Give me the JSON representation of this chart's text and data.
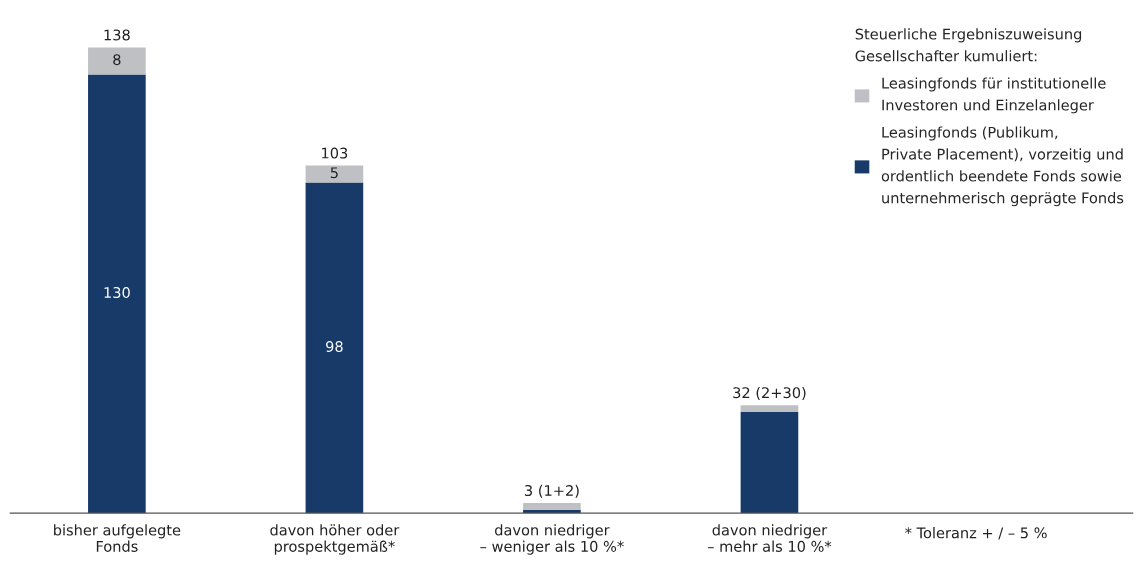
{
  "chart_data": {
    "type": "bar",
    "stacked": true,
    "legend": "top right",
    "grid": false,
    "tick_labels": "x",
    "legend_title": "Steuerliche Ergebniszuweisung\nGesellschafter kumuliert:",
    "categories": [
      "bisher aufgelegte\nFonds",
      "davon höher oder\nprospektgemäß*",
      "davon niedriger\n– weniger als 10 %*",
      "davon niedriger\n– mehr als 10 %*"
    ],
    "series": [
      {
        "name": "Leasingfonds (Publikum,\nPrivate Placement), vorzeitig und\nordentlich beendete Fonds sowie\nunternehmerisch geprägte Fonds",
        "color": "#173a68",
        "values": [
          130,
          98,
          1,
          30
        ],
        "value_labels": [
          "130",
          "98",
          null,
          null
        ]
      },
      {
        "name": "Leasingfonds für institutionelle\nInvestoren und Einzelanleger",
        "color": "#bfc0c4",
        "values": [
          8,
          5,
          2,
          2
        ],
        "value_labels": [
          "8",
          "5",
          null,
          null
        ]
      }
    ],
    "totals": [
      "138",
      "103",
      "3 (1+2)",
      "32 (2+30)"
    ],
    "annotations": [
      "* Toleranz + / – 5 %"
    ]
  }
}
